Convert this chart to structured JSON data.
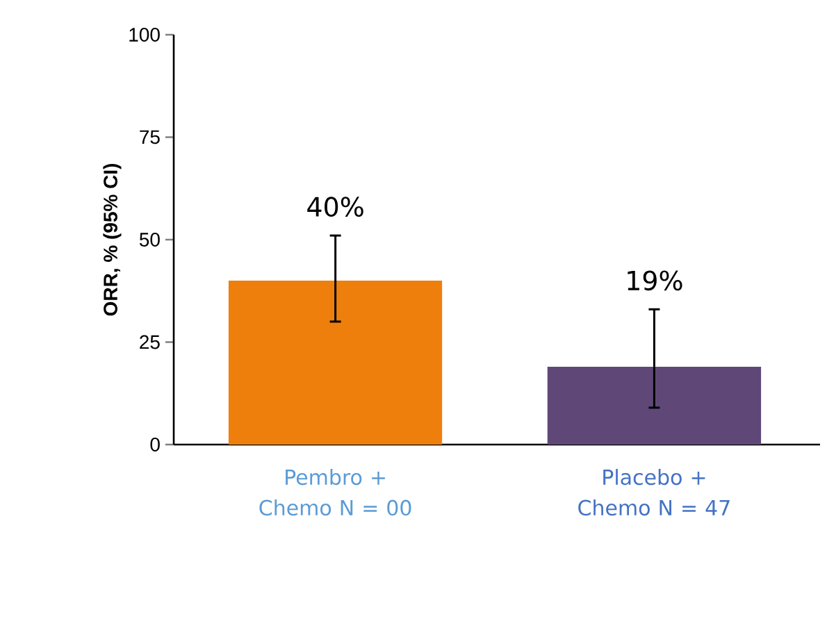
{
  "chart_data": {
    "type": "bar",
    "ylabel": "ORR, % (95% CI)",
    "categories": [
      "Pembro + Chemo N = 00",
      "Placebo + Chemo N = 47"
    ],
    "values": [
      40,
      19
    ],
    "colors": [
      "#ef7f0c",
      "#5f4878"
    ],
    "errors": [
      [
        30,
        51
      ],
      [
        9,
        33
      ]
    ],
    "value_labels": [
      "40%",
      "19%"
    ],
    "ylim": [
      0,
      100
    ],
    "yticks": [
      0,
      25,
      50,
      75,
      100
    ]
  }
}
